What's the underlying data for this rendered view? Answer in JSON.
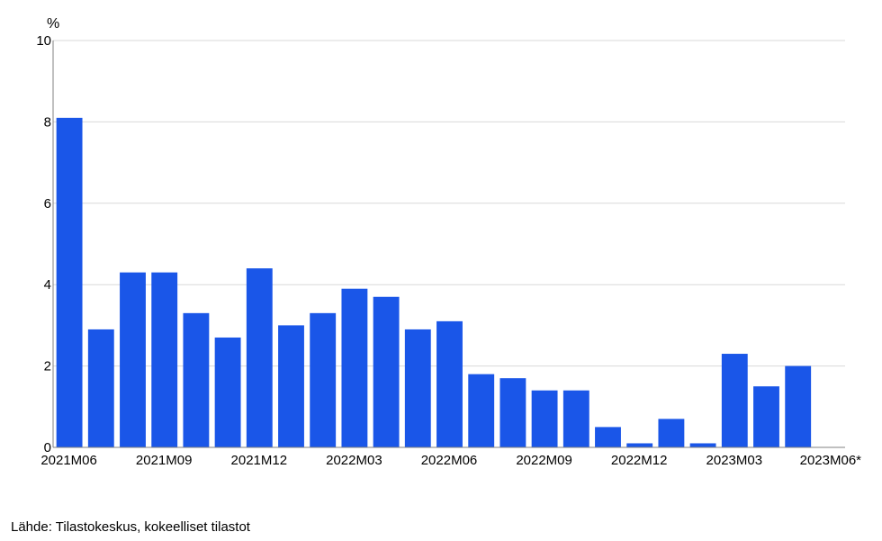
{
  "chart_data": {
    "type": "bar",
    "unit_label": "%",
    "categories": [
      "2021M06",
      "2021M07",
      "2021M08",
      "2021M09",
      "2021M10",
      "2021M11",
      "2021M12",
      "2022M01",
      "2022M02",
      "2022M03",
      "2022M04",
      "2022M05",
      "2022M06",
      "2022M07",
      "2022M08",
      "2022M09",
      "2022M10",
      "2022M11",
      "2022M12",
      "2023M01",
      "2023M02",
      "2023M03",
      "2023M04",
      "2023M05",
      "2023M06*"
    ],
    "series": [
      {
        "values": [
          8.1,
          2.9,
          4.3,
          4.3,
          3.3,
          2.7,
          4.4,
          3.0,
          3.3,
          3.9,
          3.7,
          2.9,
          3.1,
          1.8,
          1.7,
          1.4,
          1.4,
          0.5,
          0.1,
          0.7,
          0.1,
          2.3,
          1.5,
          2.0,
          null
        ]
      }
    ],
    "x_tick_labels": [
      "2021M06",
      "2021M09",
      "2021M12",
      "2022M03",
      "2022M06",
      "2022M09",
      "2022M12",
      "2023M03",
      "2023M06*"
    ],
    "y_ticks": [
      0,
      2,
      4,
      6,
      8,
      10
    ],
    "ylim": [
      0,
      10
    ],
    "grid": true,
    "legend": "none",
    "bar_color": "#1a56e8",
    "grid_color": "#d9d9d9"
  },
  "source": "Lähde: Tilastokeskus, kokeelliset tilastot"
}
